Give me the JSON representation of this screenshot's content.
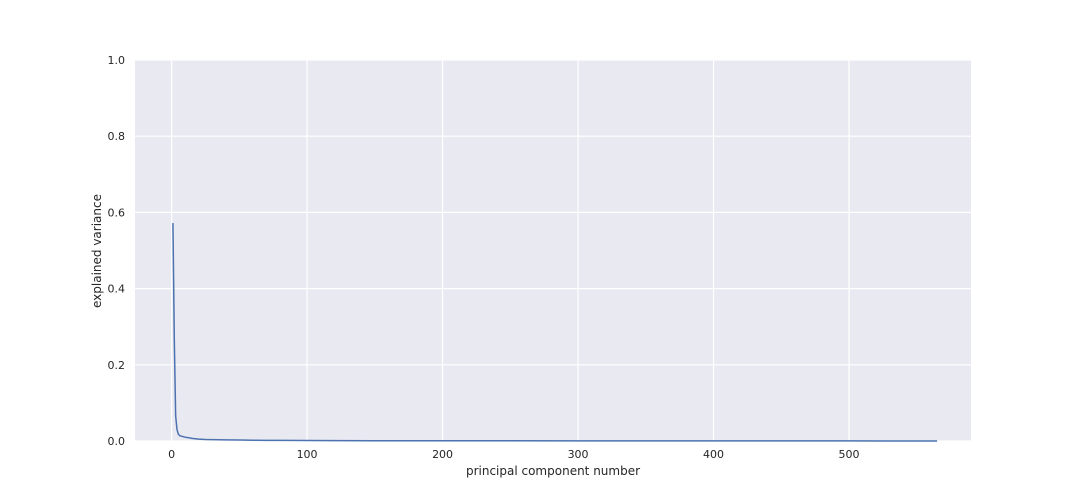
{
  "chart_data": {
    "type": "line",
    "title": "",
    "xlabel": "principal component number",
    "ylabel": "explained variance",
    "xlim": [
      -27,
      590
    ],
    "ylim": [
      0,
      1
    ],
    "xticks": [
      0,
      100,
      200,
      300,
      400,
      500
    ],
    "yticks": [
      0.0,
      0.2,
      0.4,
      0.6,
      0.8,
      1.0
    ],
    "xtick_labels": [
      "0",
      "100",
      "200",
      "300",
      "400",
      "500"
    ],
    "ytick_labels": [
      "0.0",
      "0.2",
      "0.4",
      "0.6",
      "0.8",
      "1.0"
    ],
    "grid": true,
    "legend": false,
    "colors": {
      "background": "#e9e9f1",
      "grid": "#ffffff",
      "line": "#4c72b0"
    },
    "series": [
      {
        "x": [
          1,
          2,
          3,
          4,
          5,
          6,
          8,
          10,
          12,
          15,
          20,
          25,
          30,
          40,
          50,
          60,
          70,
          80,
          100,
          120,
          150,
          200,
          250,
          300,
          350,
          400,
          450,
          500,
          550,
          565
        ],
        "values": [
          0.572,
          0.268,
          0.066,
          0.03,
          0.018,
          0.014,
          0.012,
          0.01,
          0.009,
          0.007,
          0.005,
          0.004,
          0.0035,
          0.003,
          0.0025,
          0.002,
          0.0017,
          0.0015,
          0.0012,
          0.001,
          0.0008,
          0.0006,
          0.0005,
          0.0004,
          0.0003,
          0.0003,
          0.0002,
          0.0002,
          0.0001,
          0.0001
        ]
      }
    ]
  }
}
